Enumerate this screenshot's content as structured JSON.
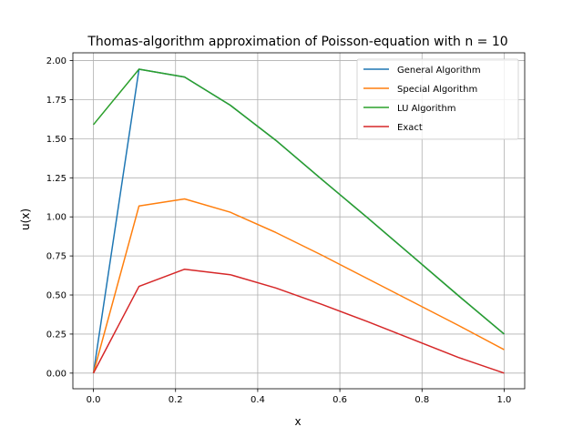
{
  "chart_data": {
    "type": "line",
    "title": "Thomas-algorithm approximation of Poisson-equation with n = 10",
    "xlabel": "x",
    "ylabel": "u(x)",
    "xlim": [
      -0.05,
      1.05
    ],
    "ylim": [
      -0.1,
      2.05
    ],
    "xticks": [
      0.0,
      0.2,
      0.4,
      0.6,
      0.8,
      1.0
    ],
    "xtick_labels": [
      "0.0",
      "0.2",
      "0.4",
      "0.6",
      "0.8",
      "1.0"
    ],
    "yticks": [
      0.0,
      0.25,
      0.5,
      0.75,
      1.0,
      1.25,
      1.5,
      1.75,
      2.0
    ],
    "ytick_labels": [
      "0.00",
      "0.25",
      "0.50",
      "0.75",
      "1.00",
      "1.25",
      "1.50",
      "1.75",
      "2.00"
    ],
    "grid": true,
    "legend_position": "top-right",
    "series": [
      {
        "name": "General Algorithm",
        "color": "#1f77b4",
        "x": [
          0.0,
          0.111,
          0.222,
          0.333,
          0.444,
          0.556,
          0.667,
          0.778,
          0.889,
          1.0
        ],
        "y": [
          0.0,
          1.945,
          1.895,
          1.715,
          1.49,
          1.24,
          0.995,
          0.745,
          0.495,
          0.25
        ]
      },
      {
        "name": "Special Algorithm",
        "color": "#ff7f0e",
        "x": [
          0.0,
          0.111,
          0.222,
          0.333,
          0.444,
          0.556,
          0.667,
          0.778,
          0.889,
          1.0
        ],
        "y": [
          0.0,
          1.07,
          1.115,
          1.03,
          0.9,
          0.755,
          0.605,
          0.455,
          0.305,
          0.15
        ]
      },
      {
        "name": "LU Algorithm",
        "color": "#2ca02c",
        "x": [
          0.0,
          0.111,
          0.222,
          0.333,
          0.444,
          0.556,
          0.667,
          0.778,
          0.889,
          1.0
        ],
        "y": [
          1.59,
          1.945,
          1.895,
          1.715,
          1.49,
          1.24,
          0.995,
          0.745,
          0.495,
          0.25
        ]
      },
      {
        "name": "Exact",
        "color": "#d62728",
        "x": [
          0.0,
          0.111,
          0.222,
          0.333,
          0.444,
          0.556,
          0.667,
          0.778,
          0.889,
          1.0
        ],
        "y": [
          0.0,
          0.555,
          0.665,
          0.63,
          0.545,
          0.44,
          0.33,
          0.215,
          0.1,
          0.0
        ]
      }
    ]
  }
}
